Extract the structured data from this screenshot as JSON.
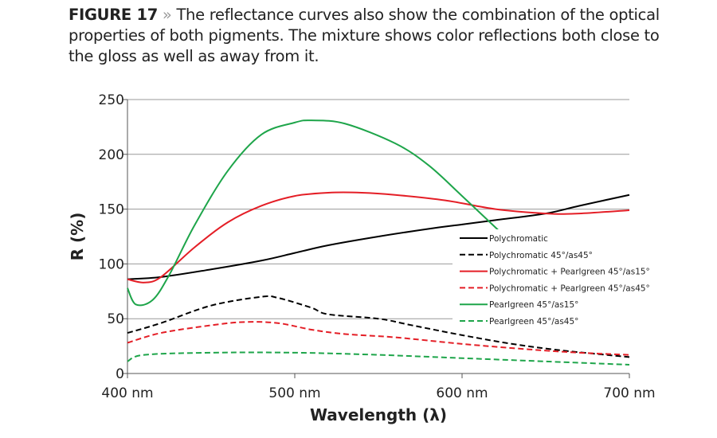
{
  "caption": {
    "label": "FIGURE 17",
    "separator": "»",
    "text": "The reflectance curves also show the combination of the optical properties of both pigments. The mixture shows color reflections both close to the gloss as well as away from it."
  },
  "chart_data": {
    "type": "line",
    "title": "",
    "xlabel": "Wavelength (λ)",
    "ylabel": "R (%)",
    "xlim": [
      400,
      700
    ],
    "ylim": [
      0,
      250
    ],
    "xticks": [
      400,
      500,
      600,
      700
    ],
    "xtick_labels": [
      "400 nm",
      "500 nm",
      "600 nm",
      "700 nm"
    ],
    "yticks": [
      0,
      50,
      100,
      150,
      200,
      250
    ],
    "ytick_labels": [
      "0",
      "50",
      "100",
      "150",
      "200",
      "250"
    ],
    "grid": "horizontal",
    "legend_position": "center-right",
    "series": [
      {
        "name": "Polychromatic",
        "color": "#000000",
        "dash": false,
        "x": [
          400,
          420,
          450,
          480,
          500,
          520,
          550,
          580,
          600,
          620,
          650,
          670,
          700
        ],
        "y": [
          86,
          88,
          95,
          103,
          110,
          117,
          125,
          132,
          136,
          140,
          146,
          153,
          163
        ]
      },
      {
        "name": "Polychromatic 45°/as45°",
        "color": "#000000",
        "dash": true,
        "x": [
          400,
          420,
          450,
          480,
          490,
          510,
          520,
          550,
          570,
          600,
          630,
          660,
          700
        ],
        "y": [
          37,
          46,
          62,
          70,
          69,
          60,
          54,
          50,
          44,
          35,
          27,
          21,
          15
        ]
      },
      {
        "name": "Polychromatic + Pearlgreen 45°/as15°",
        "color": "#e41e26",
        "dash": false,
        "x": [
          400,
          410,
          420,
          440,
          460,
          480,
          500,
          520,
          540,
          560,
          590,
          620,
          650,
          670,
          700
        ],
        "y": [
          86,
          83,
          88,
          115,
          138,
          153,
          162,
          165,
          165,
          163,
          158,
          150,
          146,
          146,
          149
        ]
      },
      {
        "name": "Polychromatic + Pearlgreen 45°/as45°",
        "color": "#e41e26",
        "dash": true,
        "x": [
          400,
          420,
          450,
          470,
          490,
          510,
          530,
          560,
          600,
          640,
          670,
          700
        ],
        "y": [
          28,
          37,
          44,
          47,
          46,
          40,
          36,
          33,
          27,
          22,
          19,
          17
        ]
      },
      {
        "name": "Pearlgreen 45°/as15°",
        "color": "#1ea54a",
        "dash": false,
        "x": [
          400,
          405,
          415,
          425,
          440,
          460,
          480,
          500,
          510,
          530,
          560,
          580,
          600,
          625
        ],
        "y": [
          78,
          63,
          67,
          90,
          135,
          185,
          218,
          229,
          231,
          228,
          210,
          190,
          162,
          126
        ]
      },
      {
        "name": "Pearlgreen 45°/as45°",
        "color": "#1ea54a",
        "dash": true,
        "x": [
          400,
          410,
          450,
          500,
          550,
          600,
          650,
          700
        ],
        "y": [
          11,
          17,
          19,
          19,
          17,
          14,
          11,
          8
        ]
      }
    ]
  }
}
